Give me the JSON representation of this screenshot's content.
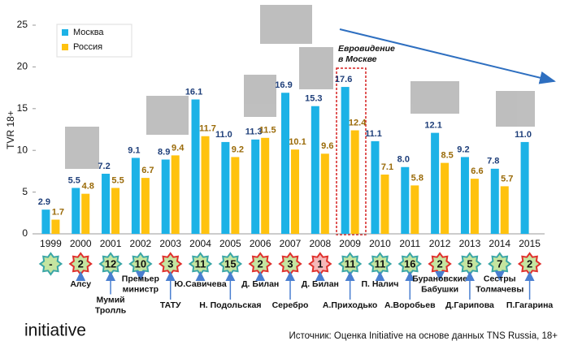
{
  "chart_data": {
    "type": "bar",
    "y_label": "TVR 18+",
    "categories": [
      "1999",
      "2000",
      "2001",
      "2002",
      "2003",
      "2004",
      "2005",
      "2006",
      "2007",
      "2008",
      "2009",
      "2010",
      "2011",
      "2012",
      "2013",
      "2014",
      "2015"
    ],
    "series": [
      {
        "name": "Москва",
        "color": "#1cb2e6",
        "values": [
          2.9,
          5.5,
          7.2,
          9.1,
          8.9,
          16.1,
          11.0,
          11.3,
          16.9,
          15.3,
          17.6,
          11.1,
          8.0,
          12.1,
          9.2,
          7.8,
          11.0
        ],
        "value_labels": [
          "2.9",
          "5.5",
          "7.2",
          "9.1",
          "8.9",
          "16.1",
          "11.0",
          "11.3",
          "16.9",
          "15.3",
          "17.6",
          "11.1",
          "8.0",
          "12.1",
          "9.2",
          "7.8",
          "11.0"
        ],
        "label_color": "#1f3f7a"
      },
      {
        "name": "Россия",
        "color": "#ffc20e",
        "values": [
          1.7,
          4.8,
          5.5,
          6.7,
          9.4,
          11.7,
          9.2,
          11.5,
          10.1,
          9.6,
          12.4,
          7.1,
          5.8,
          8.5,
          6.6,
          5.7,
          null
        ],
        "value_labels": [
          "1.7",
          "4.8",
          "5.5",
          "6.7",
          "9.4",
          "11.7",
          "9.2",
          "11.5",
          "10.1",
          "9.6",
          "12.4",
          "7.1",
          "5.8",
          "8.5",
          "6.6",
          "5.7",
          null
        ],
        "label_color": "#9a6a08"
      }
    ],
    "ylim": [
      0,
      25
    ],
    "yticks": [
      0,
      5,
      10,
      15,
      20,
      25
    ],
    "grid": false,
    "legend": "top-left",
    "entries": [
      {
        "place": "-",
        "outline": "#3aa6a6",
        "fill": "#c5e5a0",
        "artist": []
      },
      {
        "place": "2",
        "outline": "#e0302c",
        "fill": "#c5e5a0",
        "artist": [
          "Алсу"
        ]
      },
      {
        "place": "12",
        "outline": "#3aa6a6",
        "fill": "#c5e5a0",
        "artist": [
          "Мумий",
          "Тролль"
        ]
      },
      {
        "place": "10",
        "outline": "#3aa6a6",
        "fill": "#c5e5a0",
        "artist": [
          "Премьер",
          "министр"
        ]
      },
      {
        "place": "3",
        "outline": "#e0302c",
        "fill": "#c5e5a0",
        "artist": [
          "ТАТУ"
        ]
      },
      {
        "place": "11",
        "outline": "#3aa6a6",
        "fill": "#c5e5a0",
        "artist": [
          "Ю.Савичева"
        ]
      },
      {
        "place": "15",
        "outline": "#3aa6a6",
        "fill": "#c5e5a0",
        "artist": [
          "Н. Подольская"
        ]
      },
      {
        "place": "2",
        "outline": "#e0302c",
        "fill": "#c5e5a0",
        "artist": [
          "Д. Билан"
        ]
      },
      {
        "place": "3",
        "outline": "#e0302c",
        "fill": "#c5e5a0",
        "artist": [
          "Серебро"
        ]
      },
      {
        "place": "1",
        "outline": "#e0302c",
        "fill": "#f5b8b8",
        "artist": [
          "Д. Билан"
        ]
      },
      {
        "place": "11",
        "outline": "#3aa6a6",
        "fill": "#c5e5a0",
        "artist": [
          "А.Приходько"
        ]
      },
      {
        "place": "11",
        "outline": "#3aa6a6",
        "fill": "#c5e5a0",
        "artist": [
          "П. Налич"
        ]
      },
      {
        "place": "16",
        "outline": "#3aa6a6",
        "fill": "#c5e5a0",
        "artist": [
          "А.Воробьев"
        ]
      },
      {
        "place": "2",
        "outline": "#e0302c",
        "fill": "#c5e5a0",
        "artist": [
          "Бурановские",
          "Бабушки"
        ]
      },
      {
        "place": "5",
        "outline": "#3aa6a6",
        "fill": "#c5e5a0",
        "artist": [
          "Д.Гарипова"
        ]
      },
      {
        "place": "7",
        "outline": "#3aa6a6",
        "fill": "#c5e5a0",
        "artist": [
          "Сестры",
          "Толмачевы"
        ]
      },
      {
        "place": "2",
        "outline": "#e0302c",
        "fill": "#c5e5a0",
        "artist": [
          "П.Гагарина"
        ]
      }
    ],
    "annotation": [
      "Евровидение",
      "в Москве"
    ],
    "logo": "initiative",
    "source": "Источник: Оценка Initiative на основе данных TNS Russia, 18+"
  }
}
